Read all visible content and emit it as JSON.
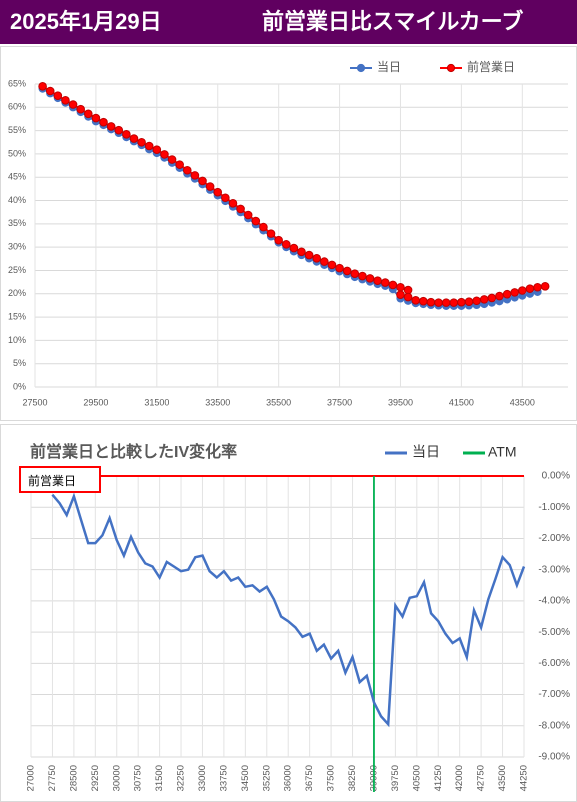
{
  "header": {
    "date": "2025年1月29日",
    "title": "前営業日比スマイルカーブ"
  },
  "chart_data": [
    {
      "type": "line",
      "legend": "top-right",
      "grid": true,
      "xlim": [
        27500,
        45000
      ],
      "xticks": [
        27500,
        29500,
        31500,
        33500,
        35500,
        37500,
        39500,
        41500,
        43500
      ],
      "ylim": [
        0,
        65
      ],
      "yticks": [
        {
          "value": 0,
          "label": "0%"
        },
        {
          "value": 5,
          "label": "5%"
        },
        {
          "value": 10,
          "label": "10%"
        },
        {
          "value": 15,
          "label": "15%"
        },
        {
          "value": 20,
          "label": "20%"
        },
        {
          "value": 25,
          "label": "25%"
        },
        {
          "value": 30,
          "label": "30%"
        },
        {
          "value": 35,
          "label": "35%"
        },
        {
          "value": 40,
          "label": "40%"
        },
        {
          "value": 45,
          "label": "45%"
        },
        {
          "value": 50,
          "label": "50%"
        },
        {
          "value": 55,
          "label": "55%"
        },
        {
          "value": 60,
          "label": "60%"
        },
        {
          "value": 65,
          "label": "65%"
        }
      ],
      "series": [
        {
          "name": "当日",
          "color": "#4472c4",
          "x": [
            27750,
            28000,
            28250,
            28500,
            28750,
            29000,
            29250,
            29500,
            29750,
            30000,
            30250,
            30500,
            30750,
            31000,
            31250,
            31500,
            31750,
            32000,
            32250,
            32500,
            32750,
            33000,
            33250,
            33500,
            33750,
            34000,
            34250,
            34500,
            34750,
            35000,
            35250,
            35500,
            35750,
            36000,
            36250,
            36500,
            36750,
            37000,
            37250,
            37500,
            37750,
            38000,
            38250,
            38500,
            38750,
            39000,
            39250,
            39500,
            39750,
            40000,
            40250,
            40500,
            40750,
            41000,
            41250,
            41500,
            41750,
            42000,
            42250,
            42500,
            42750,
            43000,
            43250,
            43500,
            43750,
            44000
          ],
          "values": [
            64.0,
            63.0,
            62.0,
            61.0,
            60.0,
            59.0,
            58.0,
            57.0,
            56.2,
            55.3,
            54.5,
            53.6,
            52.7,
            51.9,
            51.0,
            50.2,
            49.2,
            48.1,
            47.0,
            45.8,
            44.7,
            43.5,
            42.3,
            41.1,
            39.9,
            38.7,
            37.5,
            36.2,
            34.9,
            33.6,
            32.3,
            31.0,
            30.0,
            29.1,
            28.3,
            27.6,
            26.9,
            26.2,
            25.5,
            24.8,
            24.2,
            23.6,
            23.1,
            22.6,
            22.1,
            21.7,
            21.0,
            19.0,
            18.5,
            18.0,
            17.8,
            17.6,
            17.5,
            17.4,
            17.4,
            17.4,
            17.5,
            17.6,
            17.8,
            18.1,
            18.4,
            18.8,
            19.2,
            19.6,
            20.0,
            20.4
          ]
        },
        {
          "name": "前営業日",
          "color": "#ff0000",
          "x": [
            27750,
            28000,
            28250,
            28500,
            28750,
            29000,
            29250,
            29500,
            29750,
            30000,
            30250,
            30500,
            30750,
            31000,
            31250,
            31500,
            31750,
            32000,
            32250,
            32500,
            32750,
            33000,
            33250,
            33500,
            33750,
            34000,
            34250,
            34500,
            34750,
            35000,
            35250,
            35500,
            35750,
            36000,
            36250,
            36500,
            36750,
            37000,
            37250,
            37500,
            37750,
            38000,
            38250,
            38500,
            38750,
            39000,
            39250,
            39500,
            39750,
            null,
            39500,
            39750,
            40000,
            40250,
            40500,
            40750,
            41000,
            41250,
            41500,
            41750,
            42000,
            42250,
            42500,
            42750,
            43000,
            43250,
            43500,
            43750,
            44000,
            44250
          ],
          "values": [
            64.5,
            63.5,
            62.5,
            61.5,
            60.6,
            59.6,
            58.6,
            57.7,
            56.8,
            55.9,
            55.1,
            54.2,
            53.3,
            52.5,
            51.7,
            50.9,
            49.9,
            48.8,
            47.7,
            46.5,
            45.4,
            44.2,
            43.0,
            41.8,
            40.6,
            39.4,
            38.2,
            36.9,
            35.6,
            34.3,
            32.9,
            31.5,
            30.6,
            29.8,
            29.0,
            28.3,
            27.6,
            26.9,
            26.2,
            25.5,
            24.9,
            24.3,
            23.8,
            23.3,
            22.8,
            22.4,
            21.9,
            21.4,
            20.8,
            null,
            19.8,
            19.3,
            18.6,
            18.4,
            18.2,
            18.1,
            18.1,
            18.1,
            18.2,
            18.3,
            18.5,
            18.8,
            19.1,
            19.5,
            19.9,
            20.3,
            20.7,
            21.1,
            21.4,
            21.6
          ]
        }
      ]
    },
    {
      "type": "line",
      "title": "前営業日と比較したIV変化率",
      "legend": "top-right",
      "grid": true,
      "yaxis_side": "right",
      "xlim": [
        27000,
        44250
      ],
      "xticks": [
        27000,
        27750,
        28500,
        29250,
        30000,
        30750,
        31500,
        32250,
        33000,
        33750,
        34500,
        35250,
        36000,
        36750,
        37500,
        38250,
        39000,
        39750,
        40500,
        41250,
        42000,
        42750,
        43500,
        44250
      ],
      "ylim": [
        -9,
        0
      ],
      "yticks": [
        {
          "value": 0,
          "label": "0.00%"
        },
        {
          "value": -1,
          "label": "-1.00%"
        },
        {
          "value": -2,
          "label": "-2.00%"
        },
        {
          "value": -3,
          "label": "-3.00%"
        },
        {
          "value": -4,
          "label": "-4.00%"
        },
        {
          "value": -5,
          "label": "-5.00%"
        },
        {
          "value": -6,
          "label": "-6.00%"
        },
        {
          "value": -7,
          "label": "-7.00%"
        },
        {
          "value": -8,
          "label": "-8.00%"
        },
        {
          "value": -9,
          "label": "-9.00%"
        }
      ],
      "series": [
        {
          "name": "当日",
          "color": "#4472c4",
          "x": [
            27750,
            28000,
            28250,
            28500,
            28750,
            29000,
            29250,
            29500,
            29750,
            30000,
            30250,
            30500,
            30750,
            31000,
            31250,
            31500,
            31750,
            32000,
            32250,
            32500,
            32750,
            33000,
            33250,
            33500,
            33750,
            34000,
            34250,
            34500,
            34750,
            35000,
            35250,
            35500,
            35750,
            36000,
            36250,
            36500,
            36750,
            37000,
            37250,
            37500,
            37750,
            38000,
            38250,
            38500,
            38750,
            39000,
            39250,
            39500,
            39750,
            40000,
            40250,
            40500,
            40750,
            41000,
            41250,
            41500,
            41750,
            42000,
            42250,
            42500,
            42750,
            43000,
            43250,
            43500,
            43750,
            44000,
            44250
          ],
          "values": [
            -0.6,
            -0.87,
            -1.25,
            -0.65,
            -1.4,
            -2.15,
            -2.15,
            -1.9,
            -1.35,
            -2.05,
            -2.55,
            -1.95,
            -2.45,
            -2.8,
            -2.9,
            -3.25,
            -2.75,
            -2.9,
            -3.05,
            -3.0,
            -2.6,
            -2.55,
            -3.05,
            -3.25,
            -3.05,
            -3.35,
            -3.25,
            -3.55,
            -3.5,
            -3.7,
            -3.55,
            -3.95,
            -4.5,
            -4.65,
            -4.85,
            -5.15,
            -5.05,
            -5.6,
            -5.4,
            -5.85,
            -5.6,
            -6.3,
            -5.8,
            -6.6,
            -6.4,
            -7.25,
            -7.7,
            -7.95,
            -4.15,
            -4.5,
            -3.9,
            -3.85,
            -3.4,
            -4.4,
            -4.65,
            -5.05,
            -5.35,
            -5.2,
            -5.8,
            -4.3,
            -4.85,
            -3.95,
            -3.3,
            -2.6,
            -2.85,
            -3.5,
            -2.9
          ]
        }
      ],
      "atm": {
        "name": "ATM",
        "color": "#00b050",
        "x": 39000
      },
      "reference": {
        "label": "前営業日",
        "color": "#ff0000",
        "value": 0
      }
    }
  ]
}
